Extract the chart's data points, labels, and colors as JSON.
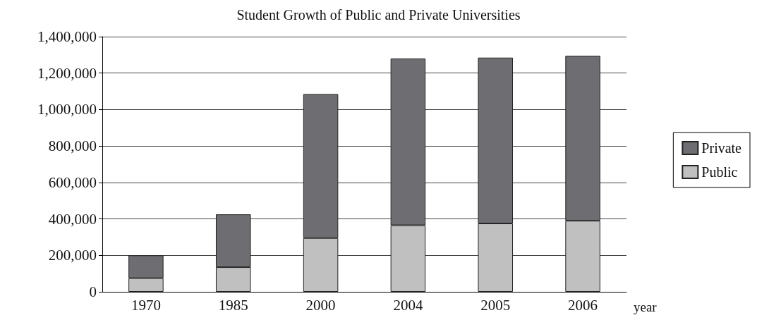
{
  "chart_data": {
    "type": "bar",
    "title": "Student Growth of Public and Private Universities",
    "xlabel": "year",
    "categories": [
      "1970",
      "1985",
      "2000",
      "2004",
      "2005",
      "2006"
    ],
    "stacked": true,
    "series": [
      {
        "name": "Public",
        "color": "#c0c0c0",
        "values": [
          75000,
          135000,
          295000,
          365000,
          375000,
          390000
        ]
      },
      {
        "name": "Private",
        "color": "#6e6e72",
        "values": [
          125000,
          290000,
          790000,
          915000,
          910000,
          905000
        ]
      }
    ],
    "ylim": [
      0,
      1400000
    ],
    "yticks": [
      0,
      {
        "value": 200000,
        "label": "200,000"
      },
      {
        "value": 400000,
        "label": "400,000"
      },
      {
        "value": 600000,
        "label": "600,000"
      },
      {
        "value": 800000,
        "label": "800,000"
      },
      {
        "value": 1000000,
        "label": "1,000,000"
      },
      {
        "value": 1200000,
        "label": "1,200,000"
      },
      {
        "value": 1400000,
        "label": "1,400,000"
      }
    ],
    "grid": "y",
    "legend": "right"
  }
}
